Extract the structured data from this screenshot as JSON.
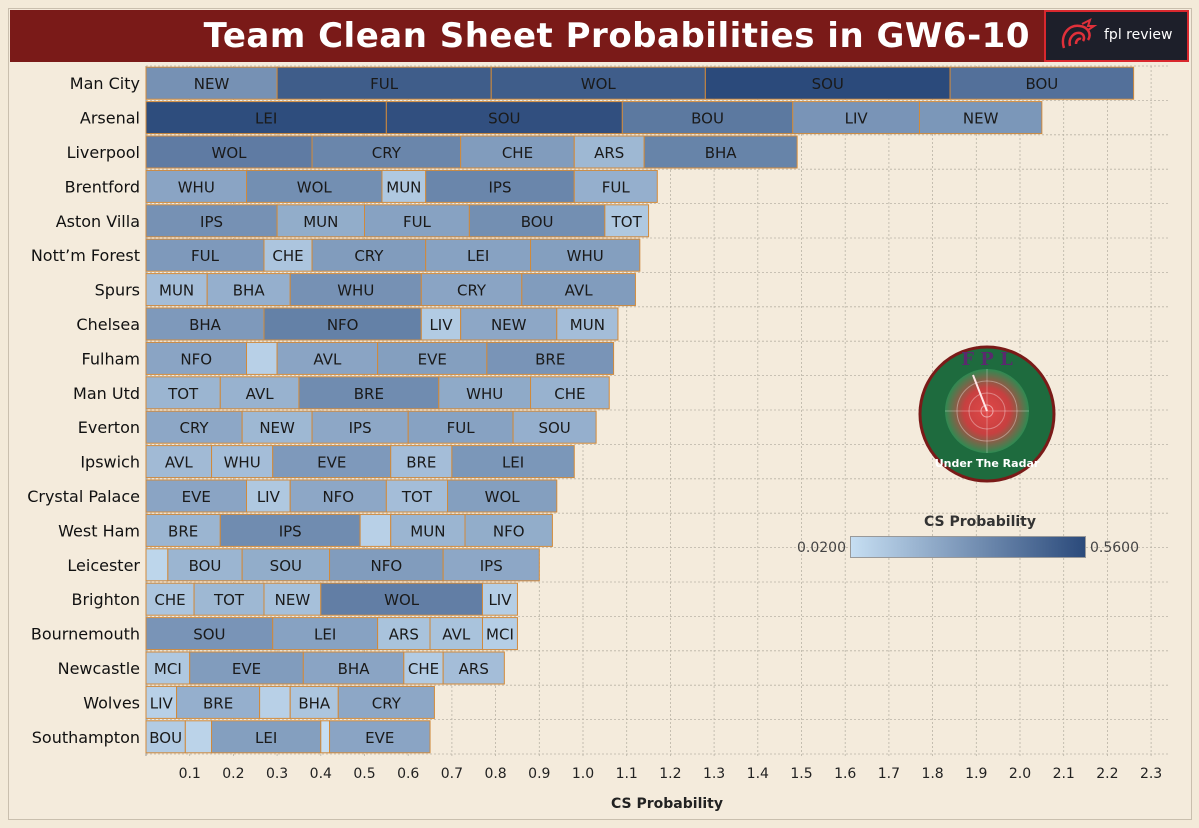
{
  "header": {
    "title": "Team Clean Sheet Probabilities in GW6-10",
    "logo_text": "fpl review"
  },
  "badge": {
    "top_text": "F P L",
    "bottom_text": "Under The Radar"
  },
  "legend": {
    "title": "CS Probability",
    "min_label": "0.0200",
    "max_label": "0.5600",
    "color_low": "#c6def2",
    "color_high": "#2b4a7b"
  },
  "colors": {
    "header_bg": "#7a1a18",
    "background": "#f4ebdc",
    "segment_border": "#d08a3c",
    "grid": "#b9b3a6"
  },
  "chart_data": {
    "type": "bar",
    "orientation": "horizontal",
    "stacked": true,
    "xlabel": "CS Probability",
    "xlim": [
      0,
      2.3
    ],
    "xticks": [
      "0.1",
      "0.2",
      "0.3",
      "0.4",
      "0.5",
      "0.6",
      "0.7",
      "0.8",
      "0.9",
      "1.0",
      "1.1",
      "1.2",
      "1.3",
      "1.4",
      "1.5",
      "1.6",
      "1.7",
      "1.8",
      "1.9",
      "2.0",
      "2.1",
      "2.2",
      "2.3"
    ],
    "color_scale": {
      "min": 0.02,
      "max": 0.56
    },
    "teams": [
      {
        "team": "Man City",
        "segments": [
          {
            "opp": "NEW",
            "value": 0.3
          },
          {
            "opp": "FUL",
            "value": 0.49
          },
          {
            "opp": "WOL",
            "value": 0.49
          },
          {
            "opp": "SOU",
            "value": 0.56
          },
          {
            "opp": "BOU",
            "value": 0.42
          }
        ]
      },
      {
        "team": "Arsenal",
        "segments": [
          {
            "opp": "LEI",
            "value": 0.55
          },
          {
            "opp": "SOU",
            "value": 0.54
          },
          {
            "opp": "BOU",
            "value": 0.39
          },
          {
            "opp": "LIV",
            "value": 0.29
          },
          {
            "opp": "NEW",
            "value": 0.28
          }
        ]
      },
      {
        "team": "Liverpool",
        "segments": [
          {
            "opp": "WOL",
            "value": 0.38
          },
          {
            "opp": "CRY",
            "value": 0.34
          },
          {
            "opp": "CHE",
            "value": 0.26
          },
          {
            "opp": "ARS",
            "value": 0.16
          },
          {
            "opp": "BHA",
            "value": 0.35
          }
        ]
      },
      {
        "team": "Brentford",
        "segments": [
          {
            "opp": "WHU",
            "value": 0.23
          },
          {
            "opp": "WOL",
            "value": 0.31
          },
          {
            "opp": "MUN",
            "value": 0.1
          },
          {
            "opp": "IPS",
            "value": 0.34
          },
          {
            "opp": "FUL",
            "value": 0.19
          }
        ]
      },
      {
        "team": "Aston Villa",
        "segments": [
          {
            "opp": "IPS",
            "value": 0.3
          },
          {
            "opp": "MUN",
            "value": 0.2
          },
          {
            "opp": "FUL",
            "value": 0.24
          },
          {
            "opp": "BOU",
            "value": 0.31
          },
          {
            "opp": "TOT",
            "value": 0.1
          }
        ]
      },
      {
        "team": "Nott’m Forest",
        "segments": [
          {
            "opp": "FUL",
            "value": 0.27
          },
          {
            "opp": "CHE",
            "value": 0.11
          },
          {
            "opp": "CRY",
            "value": 0.26
          },
          {
            "opp": "LEI",
            "value": 0.24
          },
          {
            "opp": "WHU",
            "value": 0.25
          }
        ]
      },
      {
        "team": "Spurs",
        "segments": [
          {
            "opp": "MUN",
            "value": 0.14
          },
          {
            "opp": "BHA",
            "value": 0.19
          },
          {
            "opp": "WHU",
            "value": 0.3
          },
          {
            "opp": "CRY",
            "value": 0.23
          },
          {
            "opp": "AVL",
            "value": 0.26
          }
        ]
      },
      {
        "team": "Chelsea",
        "segments": [
          {
            "opp": "BHA",
            "value": 0.27
          },
          {
            "opp": "NFO",
            "value": 0.36
          },
          {
            "opp": "LIV",
            "value": 0.09
          },
          {
            "opp": "NEW",
            "value": 0.22
          },
          {
            "opp": "MUN",
            "value": 0.14
          }
        ]
      },
      {
        "team": "Fulham",
        "segments": [
          {
            "opp": "NFO",
            "value": 0.23
          },
          {
            "opp": "",
            "value": 0.07
          },
          {
            "opp": "AVL",
            "value": 0.23
          },
          {
            "opp": "EVE",
            "value": 0.25
          },
          {
            "opp": "BRE",
            "value": 0.29
          }
        ]
      },
      {
        "team": "Man Utd",
        "segments": [
          {
            "opp": "TOT",
            "value": 0.17
          },
          {
            "opp": "AVL",
            "value": 0.18
          },
          {
            "opp": "BRE",
            "value": 0.32
          },
          {
            "opp": "WHU",
            "value": 0.21
          },
          {
            "opp": "CHE",
            "value": 0.18
          }
        ]
      },
      {
        "team": "Everton",
        "segments": [
          {
            "opp": "CRY",
            "value": 0.22
          },
          {
            "opp": "NEW",
            "value": 0.16
          },
          {
            "opp": "IPS",
            "value": 0.22
          },
          {
            "opp": "FUL",
            "value": 0.24
          },
          {
            "opp": "SOU",
            "value": 0.19
          }
        ]
      },
      {
        "team": "Ipswich",
        "segments": [
          {
            "opp": "AVL",
            "value": 0.15
          },
          {
            "opp": "WHU",
            "value": 0.14
          },
          {
            "opp": "EVE",
            "value": 0.27
          },
          {
            "opp": "BRE",
            "value": 0.14
          },
          {
            "opp": "LEI",
            "value": 0.28
          }
        ]
      },
      {
        "team": "Crystal Palace",
        "segments": [
          {
            "opp": "EVE",
            "value": 0.23
          },
          {
            "opp": "LIV",
            "value": 0.1
          },
          {
            "opp": "NFO",
            "value": 0.22
          },
          {
            "opp": "TOT",
            "value": 0.14
          },
          {
            "opp": "WOL",
            "value": 0.25
          }
        ]
      },
      {
        "team": "West Ham",
        "segments": [
          {
            "opp": "BRE",
            "value": 0.17
          },
          {
            "opp": "IPS",
            "value": 0.32
          },
          {
            "opp": "",
            "value": 0.07
          },
          {
            "opp": "MUN",
            "value": 0.17
          },
          {
            "opp": "NFO",
            "value": 0.2
          }
        ]
      },
      {
        "team": "Leicester",
        "segments": [
          {
            "opp": "",
            "value": 0.05
          },
          {
            "opp": "BOU",
            "value": 0.17
          },
          {
            "opp": "SOU",
            "value": 0.2
          },
          {
            "opp": "NFO",
            "value": 0.26
          },
          {
            "opp": "IPS",
            "value": 0.22
          }
        ]
      },
      {
        "team": "Brighton",
        "segments": [
          {
            "opp": "CHE",
            "value": 0.11
          },
          {
            "opp": "TOT",
            "value": 0.16
          },
          {
            "opp": "NEW",
            "value": 0.13
          },
          {
            "opp": "WOL",
            "value": 0.37
          },
          {
            "opp": "LIV",
            "value": 0.08
          }
        ]
      },
      {
        "team": "Bournemouth",
        "segments": [
          {
            "opp": "SOU",
            "value": 0.29
          },
          {
            "opp": "LEI",
            "value": 0.24
          },
          {
            "opp": "ARS",
            "value": 0.12
          },
          {
            "opp": "AVL",
            "value": 0.12
          },
          {
            "opp": "MCI",
            "value": 0.08
          }
        ]
      },
      {
        "team": "Newcastle",
        "segments": [
          {
            "opp": "MCI",
            "value": 0.1
          },
          {
            "opp": "EVE",
            "value": 0.26
          },
          {
            "opp": "BHA",
            "value": 0.23
          },
          {
            "opp": "CHE",
            "value": 0.09
          },
          {
            "opp": "ARS",
            "value": 0.14
          }
        ]
      },
      {
        "team": "Wolves",
        "segments": [
          {
            "opp": "LIV",
            "value": 0.07
          },
          {
            "opp": "BRE",
            "value": 0.19
          },
          {
            "opp": "",
            "value": 0.07
          },
          {
            "opp": "BHA",
            "value": 0.11
          },
          {
            "opp": "CRY",
            "value": 0.22
          }
        ]
      },
      {
        "team": "Southampton",
        "segments": [
          {
            "opp": "BOU",
            "value": 0.09
          },
          {
            "opp": "",
            "value": 0.06
          },
          {
            "opp": "LEI",
            "value": 0.25
          },
          {
            "opp": "",
            "value": 0.02
          },
          {
            "opp": "EVE",
            "value": 0.23
          }
        ]
      }
    ]
  }
}
